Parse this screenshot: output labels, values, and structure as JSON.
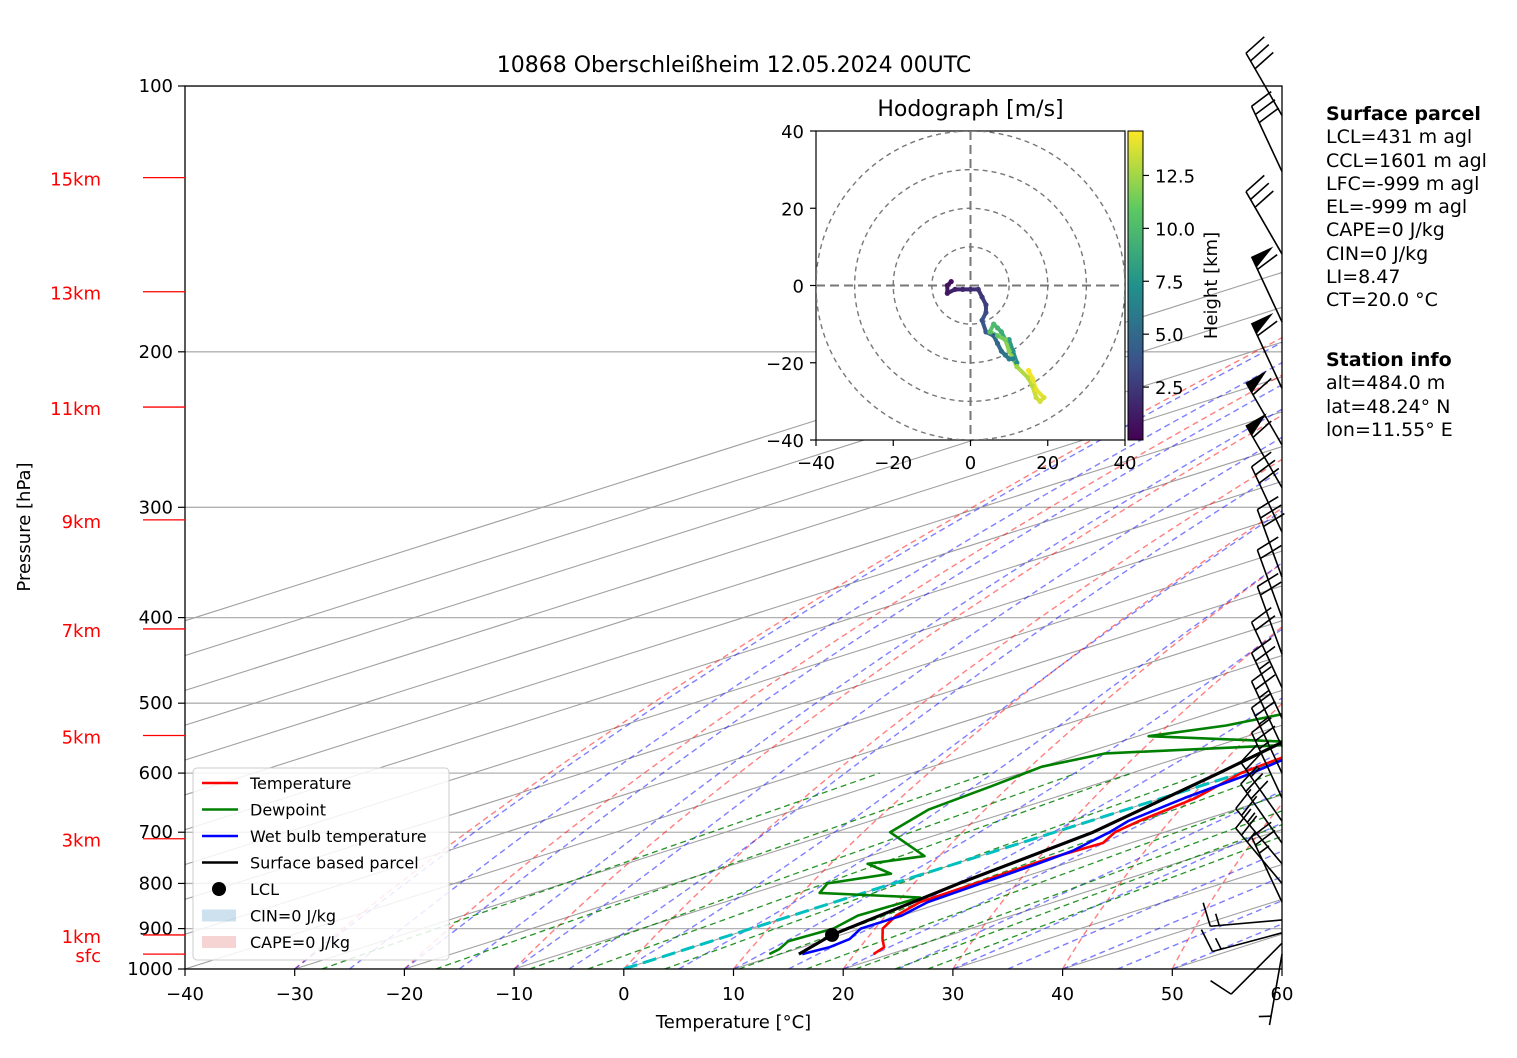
{
  "title": "10868 Oberschleißheim 12.05.2024 00UTC",
  "chart_data": [
    {
      "type": "line",
      "subtype": "skew-T log-p diagram",
      "xlabel": "Temperature [°C]",
      "ylabel": "Pressure [hPa]",
      "xlim": [
        -40,
        60
      ],
      "ylim": [
        1000,
        100
      ],
      "yscale": "log",
      "x_ticks": [
        -40,
        -30,
        -20,
        -10,
        0,
        10,
        20,
        30,
        40,
        50,
        60
      ],
      "x_tick_labels": [
        "−40",
        "−30",
        "−20",
        "−10",
        "0",
        "10",
        "20",
        "30",
        "40",
        "50",
        "60"
      ],
      "y_ticks": [
        100,
        200,
        300,
        400,
        500,
        600,
        700,
        800,
        900,
        1000
      ],
      "height_labels": [
        {
          "text": "15km",
          "p": 127
        },
        {
          "text": "13km",
          "p": 171
        },
        {
          "text": "11km",
          "p": 231
        },
        {
          "text": "9km",
          "p": 310
        },
        {
          "text": "7km",
          "p": 412
        },
        {
          "text": "5km",
          "p": 544
        },
        {
          "text": "3km",
          "p": 712
        },
        {
          "text": "1km",
          "p": 915
        },
        {
          "text": "sfc",
          "p": 962
        }
      ],
      "grid": true,
      "legend_position": "bottom-left",
      "legend": [
        "Temperature",
        "Dewpoint",
        "Wet bulb temperature",
        "Surface based parcel",
        "LCL",
        "CIN=0 J/kg",
        "CAPE=0 J/kg"
      ],
      "series": [
        {
          "name": "Temperature",
          "color": "#ff0000",
          "points": [
            [
              18.5,
              962
            ],
            [
              17.5,
              945
            ],
            [
              15,
              925
            ],
            [
              12,
              900
            ],
            [
              9.5,
              870
            ],
            [
              7.8,
              840
            ],
            [
              7.5,
              800
            ],
            [
              7.0,
              750
            ],
            [
              7.5,
              720
            ],
            [
              5.5,
              700
            ],
            [
              4.5,
              680
            ],
            [
              3,
              640
            ],
            [
              0,
              600
            ],
            [
              -1.2,
              560
            ],
            [
              -2.5,
              520
            ],
            [
              -4,
              500
            ],
            [
              -8,
              460
            ],
            [
              -13,
              420
            ],
            [
              -12.5,
              410
            ],
            [
              -14,
              390
            ],
            [
              -16,
              360
            ],
            [
              -18,
              335
            ],
            [
              -22,
              310
            ],
            [
              -25,
              290
            ],
            [
              -28,
              265
            ],
            [
              -32,
              240
            ],
            [
              -35,
              220
            ],
            [
              -37,
              205
            ],
            [
              -36,
              195
            ],
            [
              -35,
              185
            ],
            [
              -33,
              175
            ],
            [
              -27,
              165
            ],
            [
              -25,
              155
            ],
            [
              -23,
              145
            ],
            [
              -19,
              135
            ],
            [
              -17,
              130
            ],
            [
              -15,
              125
            ],
            [
              -13.5,
              122
            ]
          ]
        },
        {
          "name": "Dewpoint",
          "color": "#008000",
          "points": [
            [
              9,
              962
            ],
            [
              8.5,
              950
            ],
            [
              7,
              930
            ],
            [
              7.5,
              900
            ],
            [
              6,
              870
            ],
            [
              6.5,
              830
            ],
            [
              -4,
              820
            ],
            [
              -6,
              800
            ],
            [
              -3,
              780
            ],
            [
              -8,
              760
            ],
            [
              -5,
              745
            ],
            [
              -15,
              700
            ],
            [
              -18,
              660
            ],
            [
              -19,
              620
            ],
            [
              -20,
              590
            ],
            [
              -18,
              570
            ],
            [
              -1,
              555
            ],
            [
              -19,
              545
            ],
            [
              -15,
              530
            ],
            [
              -12,
              505
            ],
            [
              -18,
              470
            ],
            [
              -22,
              440
            ],
            [
              -20,
              420
            ],
            [
              -33,
              415
            ],
            [
              -36,
              360
            ],
            [
              -38,
              330
            ],
            [
              -40,
              310
            ],
            [
              -38,
              290
            ],
            [
              -35,
              270
            ],
            [
              -36,
              245
            ],
            [
              -37,
              225
            ],
            [
              -38,
              200
            ],
            [
              -37,
              185
            ],
            [
              -40,
              175
            ],
            [
              -41,
              160
            ],
            [
              -38,
              140
            ],
            [
              -37,
              128
            ],
            [
              -36,
              122
            ]
          ]
        },
        {
          "name": "Wet bulb temperature",
          "color": "#0000ff",
          "points": [
            [
              12,
              962
            ],
            [
              12.5,
              945
            ],
            [
              12,
              925
            ],
            [
              10,
              900
            ],
            [
              10,
              870
            ],
            [
              8.5,
              840
            ],
            [
              8,
              800
            ],
            [
              7.5,
              760
            ],
            [
              7,
              735
            ],
            [
              5,
              700
            ],
            [
              3.5,
              680
            ],
            [
              2,
              640
            ],
            [
              1,
              600
            ],
            [
              -1,
              560
            ],
            [
              2,
              540
            ],
            [
              1,
              520
            ],
            [
              -4,
              500
            ],
            [
              -8,
              460
            ],
            [
              -13,
              420
            ],
            [
              -14,
              400
            ],
            [
              -16,
              360
            ],
            [
              -19,
              335
            ],
            [
              -23,
              310
            ],
            [
              -26,
              290
            ],
            [
              -29,
              265
            ],
            [
              -33,
              240
            ],
            [
              -36,
              220
            ],
            [
              -37,
              205
            ],
            [
              -36,
              195
            ],
            [
              -35,
              185
            ],
            [
              -33,
              175
            ],
            [
              -27,
              165
            ],
            [
              -25,
              155
            ],
            [
              -23,
              145
            ],
            [
              -19,
              135
            ],
            [
              -17,
              130
            ],
            [
              -15,
              125
            ],
            [
              -13.5,
              122
            ]
          ]
        },
        {
          "name": "Surface based parcel",
          "color": "#000000",
          "points": [
            [
              11.7,
              962
            ],
            [
              9.2,
              915
            ],
            [
              6,
              800
            ],
            [
              3.5,
              700
            ],
            [
              -2,
              600
            ],
            [
              -9,
              500
            ],
            [
              -18,
              400
            ],
            [
              -30,
              300
            ],
            [
              -44,
              200
            ],
            [
              -54,
              160
            ],
            [
              -63,
              135
            ],
            [
              -68,
              122
            ]
          ]
        }
      ],
      "lcl": {
        "t": 9.2,
        "p": 915
      },
      "cin": "CIN=0 J/kg",
      "cape": "CAPE=0 J/kg",
      "wind_barbs_kn": [
        {
          "p": 962,
          "dir": 190,
          "spd": 5
        },
        {
          "p": 935,
          "dir": 225,
          "spd": 10
        },
        {
          "p": 910,
          "dir": 255,
          "spd": 15
        },
        {
          "p": 880,
          "dir": 265,
          "spd": 15
        },
        {
          "p": 840,
          "dir": 335,
          "spd": 25
        },
        {
          "p": 800,
          "dir": 320,
          "spd": 25
        },
        {
          "p": 760,
          "dir": 320,
          "spd": 25
        },
        {
          "p": 720,
          "dir": 325,
          "spd": 30
        },
        {
          "p": 680,
          "dir": 325,
          "spd": 25
        },
        {
          "p": 640,
          "dir": 335,
          "spd": 25
        },
        {
          "p": 600,
          "dir": 335,
          "spd": 25
        },
        {
          "p": 560,
          "dir": 335,
          "spd": 25
        },
        {
          "p": 520,
          "dir": 335,
          "spd": 25
        },
        {
          "p": 480,
          "dir": 335,
          "spd": 20
        },
        {
          "p": 440,
          "dir": 340,
          "spd": 20
        },
        {
          "p": 400,
          "dir": 340,
          "spd": 20
        },
        {
          "p": 360,
          "dir": 340,
          "spd": 30
        },
        {
          "p": 320,
          "dir": 335,
          "spd": 30
        },
        {
          "p": 285,
          "dir": 330,
          "spd": 60
        },
        {
          "p": 255,
          "dir": 330,
          "spd": 60
        },
        {
          "p": 220,
          "dir": 335,
          "spd": 60
        },
        {
          "p": 185,
          "dir": 335,
          "spd": 60
        },
        {
          "p": 155,
          "dir": 330,
          "spd": 30
        },
        {
          "p": 125,
          "dir": 335,
          "spd": 30
        },
        {
          "p": 108,
          "dir": 330,
          "spd": 30
        }
      ]
    },
    {
      "type": "line",
      "title": "Hodograph [m/s]",
      "xlim": [
        -40,
        40
      ],
      "ylim": [
        -40,
        40
      ],
      "x_ticks": [
        -40,
        -20,
        0,
        20,
        40
      ],
      "x_tick_labels": [
        "−40",
        "−20",
        "0",
        "20",
        "40"
      ],
      "y_ticks": [
        40,
        20,
        0,
        -20,
        -40
      ],
      "y_tick_labels": [
        "40",
        "20",
        "0",
        "−20",
        "−40"
      ],
      "rings": [
        10,
        20,
        30,
        40
      ],
      "colorbar_label": "Height [km]",
      "colorbar_ticks": [
        "2.5",
        "5.0",
        "7.5",
        "10.0",
        "12.5"
      ],
      "colorbar_range": [
        0,
        14.6
      ],
      "points": [
        {
          "u": -5,
          "v": 1,
          "h": 0.5
        },
        {
          "u": -6,
          "v": 0,
          "h": 0.7
        },
        {
          "u": -6,
          "v": -2,
          "h": 1.0
        },
        {
          "u": -4,
          "v": -1,
          "h": 1.3
        },
        {
          "u": -2,
          "v": -1,
          "h": 1.6
        },
        {
          "u": 0,
          "v": -1,
          "h": 1.9
        },
        {
          "u": 2,
          "v": -1,
          "h": 2.1
        },
        {
          "u": 3,
          "v": -3,
          "h": 2.4
        },
        {
          "u": 4,
          "v": -5,
          "h": 2.8
        },
        {
          "u": 4,
          "v": -7,
          "h": 3.2
        },
        {
          "u": 3,
          "v": -9,
          "h": 3.6
        },
        {
          "u": 4,
          "v": -12,
          "h": 4.0
        },
        {
          "u": 6,
          "v": -13,
          "h": 4.4
        },
        {
          "u": 7,
          "v": -15,
          "h": 4.8
        },
        {
          "u": 8,
          "v": -17,
          "h": 5.2
        },
        {
          "u": 9,
          "v": -18,
          "h": 5.6
        },
        {
          "u": 10,
          "v": -19,
          "h": 6.0
        },
        {
          "u": 11,
          "v": -19,
          "h": 6.5
        },
        {
          "u": 12,
          "v": -20,
          "h": 7.0
        },
        {
          "u": 11,
          "v": -17,
          "h": 7.5
        },
        {
          "u": 10,
          "v": -14,
          "h": 8.0
        },
        {
          "u": 9,
          "v": -14,
          "h": 8.5
        },
        {
          "u": 8,
          "v": -12,
          "h": 9.0
        },
        {
          "u": 7,
          "v": -11,
          "h": 9.5
        },
        {
          "u": 6,
          "v": -10,
          "h": 10.0
        },
        {
          "u": 5,
          "v": -12,
          "h": 10.5
        },
        {
          "u": 7,
          "v": -13,
          "h": 11.0
        },
        {
          "u": 9,
          "v": -14,
          "h": 11.5
        },
        {
          "u": 10,
          "v": -17,
          "h": 12.0
        },
        {
          "u": 12,
          "v": -21,
          "h": 12.4
        },
        {
          "u": 15,
          "v": -24,
          "h": 12.8
        },
        {
          "u": 16,
          "v": -26,
          "h": 13.1
        },
        {
          "u": 17,
          "v": -29,
          "h": 13.4
        },
        {
          "u": 18,
          "v": -30,
          "h": 13.6
        },
        {
          "u": 19,
          "v": -29,
          "h": 13.8
        },
        {
          "u": 17,
          "v": -27,
          "h": 14.0
        },
        {
          "u": 16,
          "v": -24,
          "h": 14.2
        },
        {
          "u": 15,
          "v": -22,
          "h": 14.4
        }
      ]
    }
  ],
  "surface_parcel": {
    "heading": "Surface parcel",
    "lines": [
      "LCL=431 m agl",
      "CCL=1601 m agl",
      "LFC=-999 m agl",
      "EL=-999 m agl",
      "CAPE=0 J/kg",
      "CIN=0 J/kg",
      "LI=8.47",
      "CT=20.0 °C"
    ]
  },
  "station_info": {
    "heading": "Station info",
    "lines": [
      "alt=484.0 m",
      "lat=48.24° N",
      "lon=11.55° E"
    ]
  }
}
